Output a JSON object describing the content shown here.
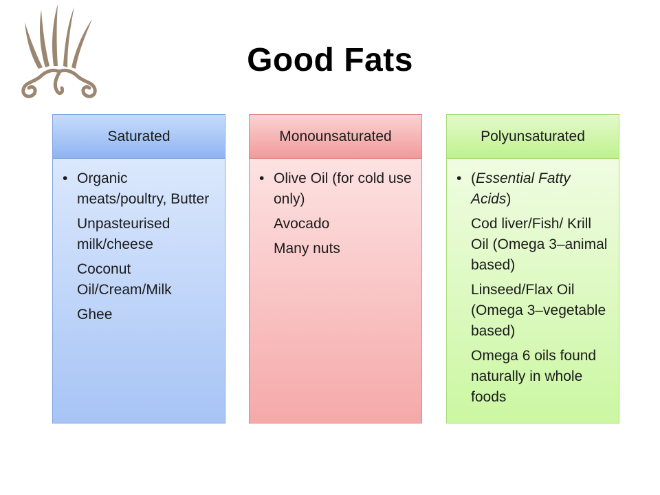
{
  "title": "Good Fats",
  "logo_icon": "decorative-wheat-flourish",
  "colors": {
    "saturated": "#a7c4f5",
    "monounsaturated": "#f5a9a9",
    "polyunsaturated": "#cbf7a2",
    "logo": "#9b8670"
  },
  "columns": [
    {
      "header": "Saturated",
      "items": [
        "Organic meats/poultry, Butter",
        "Unpasteurised milk/cheese",
        "Coconut Oil/Cream/Milk",
        "Ghee"
      ]
    },
    {
      "header": "Monounsaturated",
      "items": [
        "Olive Oil (for cold use only)",
        "Avocado",
        "Many nuts"
      ]
    },
    {
      "header": "Polyunsaturated",
      "items": [
        "Essential Fatty Acids",
        "Cod liver/Fish/ Krill Oil (Omega 3–animal based)",
        "Linseed/Flax Oil (Omega 3–vegetable based)",
        "Omega 6 oils found naturally in whole foods"
      ]
    }
  ],
  "bullet": "•"
}
